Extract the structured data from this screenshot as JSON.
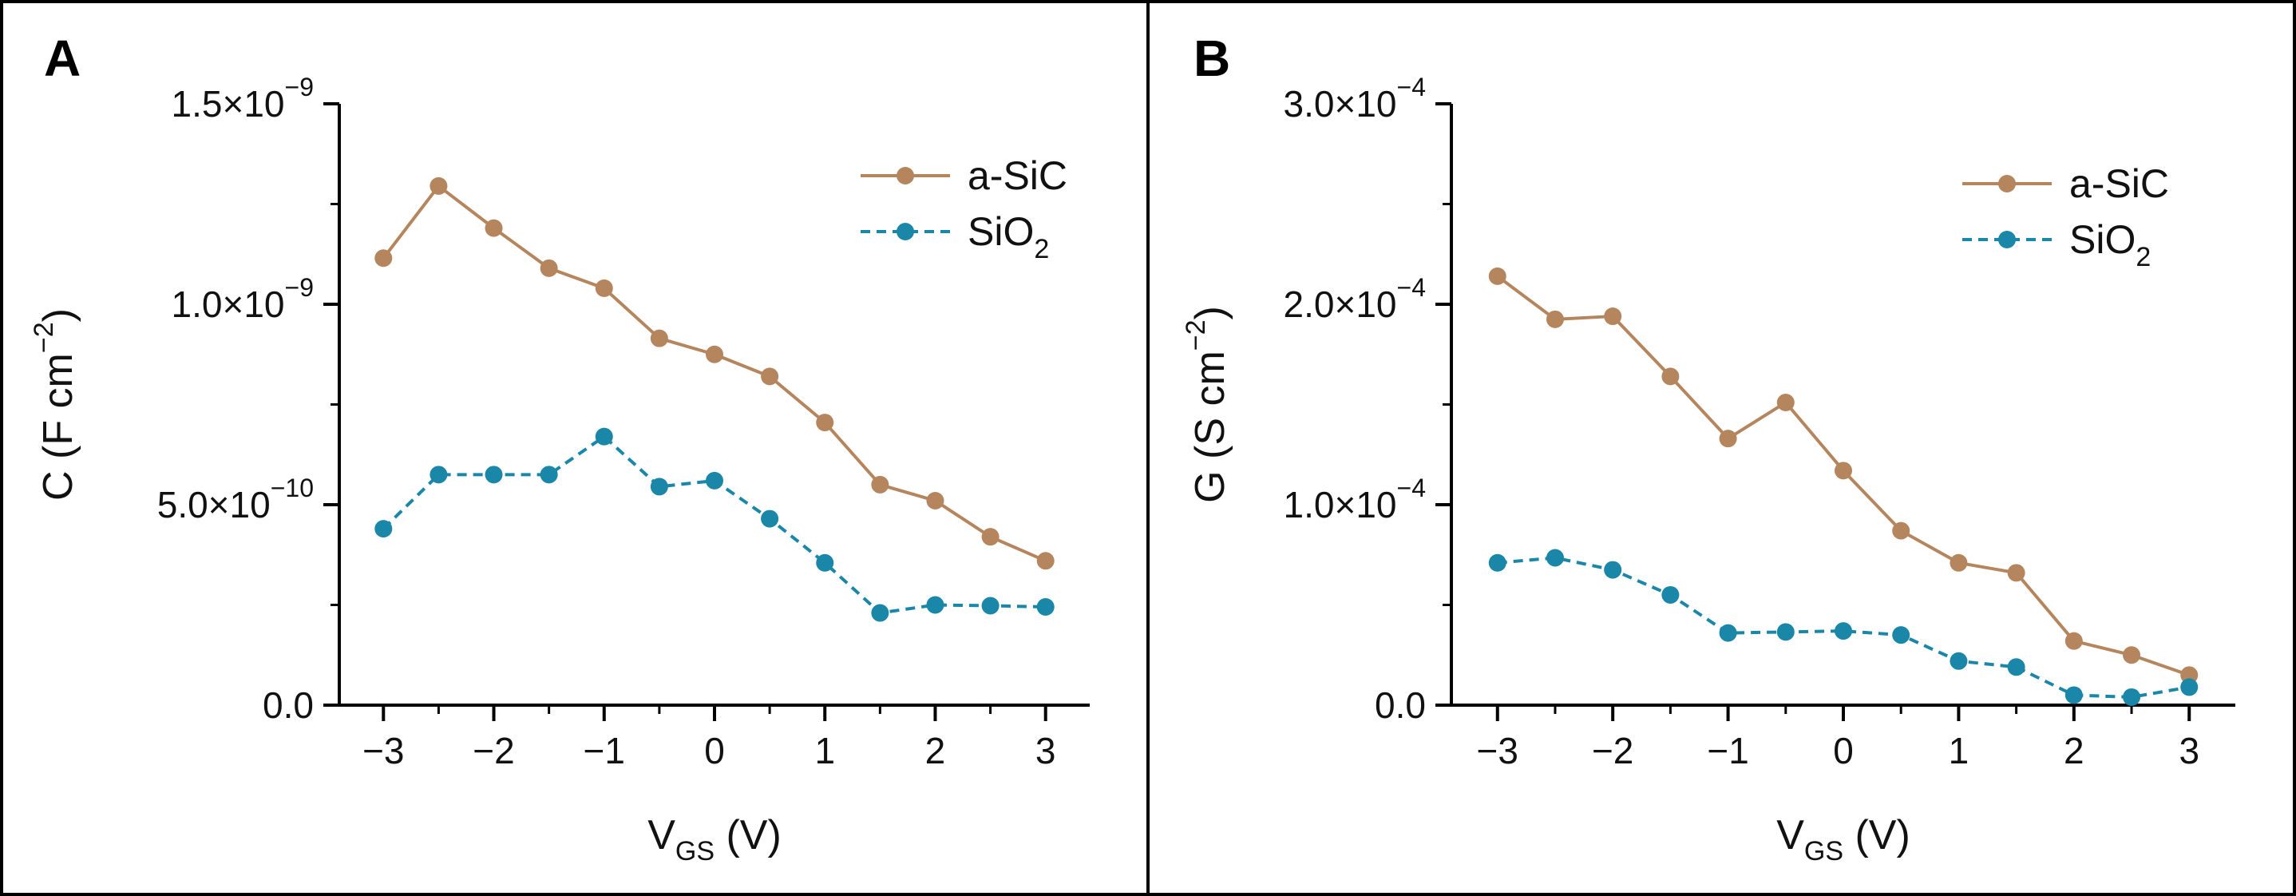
{
  "chart_data": [
    {
      "type": "line",
      "panel": "A",
      "xlabel": "V_GS (V)",
      "xlabel_main": "V",
      "xlabel_sub": "GS",
      "xlabel_unit": " (V)",
      "ylabel": "C (F cm^-2)",
      "ylabel_main": "C (F cm",
      "ylabel_sup": "−2",
      "ylabel_close": ")",
      "xlim": [
        -3.4,
        3.4
      ],
      "ylim": [
        0,
        1.5e-09
      ],
      "xticks": [
        -3,
        -2,
        -1,
        0,
        1,
        2,
        3
      ],
      "xtick_labels": [
        "−3",
        "−2",
        "−1",
        "0",
        "1",
        "2",
        "3"
      ],
      "yticks": [
        0,
        5e-10,
        1e-09,
        1.5e-09
      ],
      "ytick_labels": [
        {
          "mant": "0.0",
          "exp": ""
        },
        {
          "mant": "5.0×10",
          "exp": "−10"
        },
        {
          "mant": "1.0×10",
          "exp": "−9"
        },
        {
          "mant": "1.5×10",
          "exp": "−9"
        }
      ],
      "legend_position": "top-right",
      "x": [
        -3,
        -2.5,
        -2,
        -1.5,
        -1,
        -0.5,
        0,
        0.5,
        1,
        1.5,
        2,
        2.5,
        3
      ],
      "series": [
        {
          "name": "a-SiC",
          "name_main": "a-SiC",
          "name_sub": "",
          "color": "#b5865e",
          "dashed": false,
          "values": [
            1.115e-09,
            1.295e-09,
            1.19e-09,
            1.09e-09,
            1.04e-09,
            9.15e-10,
            8.75e-10,
            8.2e-10,
            7.05e-10,
            5.5e-10,
            5.1e-10,
            4.2e-10,
            3.6e-10
          ]
        },
        {
          "name": "SiO2",
          "name_main": "SiO",
          "name_sub": "2",
          "color": "#1a86a8",
          "dashed": true,
          "values": [
            4.4e-10,
            5.75e-10,
            5.75e-10,
            5.75e-10,
            6.7e-10,
            5.45e-10,
            5.6e-10,
            4.65e-10,
            3.55e-10,
            2.3e-10,
            2.5e-10,
            2.48e-10,
            2.45e-10
          ]
        }
      ]
    },
    {
      "type": "line",
      "panel": "B",
      "xlabel": "V_GS (V)",
      "xlabel_main": "V",
      "xlabel_sub": "GS",
      "xlabel_unit": " (V)",
      "ylabel": "G (S cm^-2)",
      "ylabel_main": "G (S cm",
      "ylabel_sup": "−2",
      "ylabel_close": ")",
      "xlim": [
        -3.4,
        3.4
      ],
      "ylim": [
        0,
        0.0003
      ],
      "xticks": [
        -3,
        -2,
        -1,
        0,
        1,
        2,
        3
      ],
      "xtick_labels": [
        "−3",
        "−2",
        "−1",
        "0",
        "1",
        "2",
        "3"
      ],
      "yticks": [
        0,
        0.0001,
        0.0002,
        0.0003
      ],
      "ytick_labels": [
        {
          "mant": "0.0",
          "exp": ""
        },
        {
          "mant": "1.0×10",
          "exp": "−4"
        },
        {
          "mant": "2.0×10",
          "exp": "−4"
        },
        {
          "mant": "3.0×10",
          "exp": "−4"
        }
      ],
      "legend_position": "top-right",
      "x": [
        -3,
        -2.5,
        -2,
        -1.5,
        -1,
        -0.5,
        0,
        0.5,
        1,
        1.5,
        2,
        2.5,
        3
      ],
      "series": [
        {
          "name": "a-SiC",
          "name_main": "a-SiC",
          "name_sub": "",
          "color": "#b5865e",
          "dashed": false,
          "values": [
            0.000214,
            0.0001925,
            0.000194,
            0.000164,
            0.000133,
            0.000151,
            0.000117,
            8.7e-05,
            7.1e-05,
            6.6e-05,
            3.2e-05,
            2.5e-05,
            1.5e-05
          ]
        },
        {
          "name": "SiO2",
          "name_main": "SiO",
          "name_sub": "2",
          "color": "#1a86a8",
          "dashed": true,
          "values": [
            7.1e-05,
            7.35e-05,
            6.75e-05,
            5.5e-05,
            3.6e-05,
            3.65e-05,
            3.7e-05,
            3.5e-05,
            2.2e-05,
            1.9e-05,
            5e-06,
            4e-06,
            9e-06
          ]
        }
      ]
    }
  ]
}
